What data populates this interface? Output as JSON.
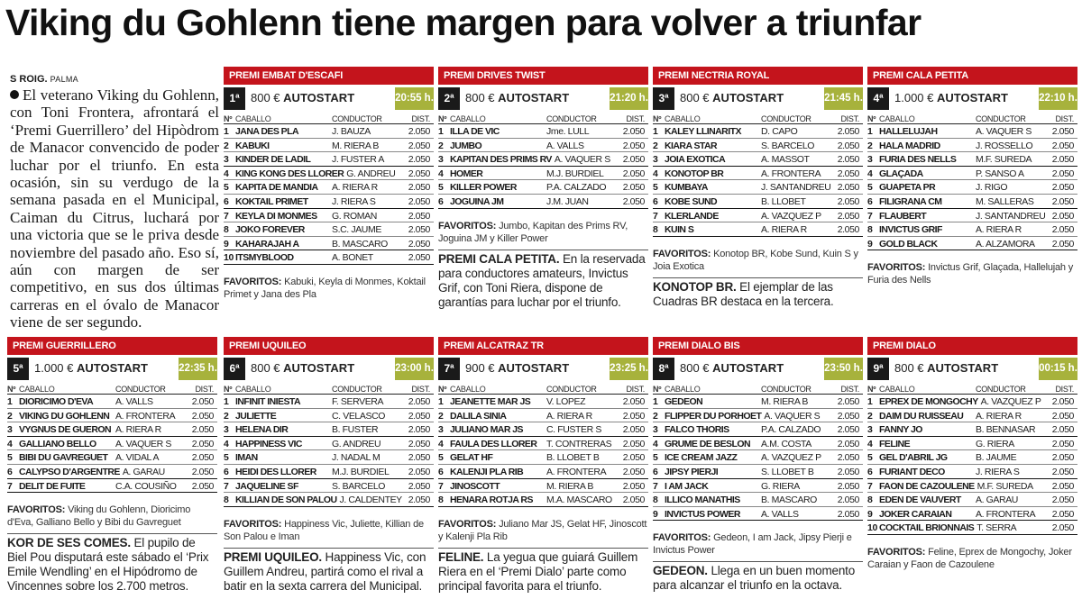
{
  "headline": "Viking du Gohlenn tiene margen para volver a triunfar",
  "byline": {
    "author": "S ROIG.",
    "city": "PALMA"
  },
  "lead": "El veterano Viking du Gohlenn, con Toni Frontera, afrontará el ‘Premi Guerrillero’ del Hipòdrom de Manacor convencido de poder luchar por el triunfo. En esta ocasión, sin su verdugo de la semana pasada en el Municipal, Caiman du Citrus, luchará por una victoria que se le priva desde noviembre del pasado año. Eso sí, aún con margen de ser competitivo, en sus dos últimas carreras en el óvalo de Manacor viene de ser segundo.",
  "labels": {
    "num": "Nº",
    "horse": "CABALLO",
    "driver": "CONDUCTOR",
    "dist": "DIST.",
    "favorites": "FAVORITOS:",
    "autostart": "AUTOSTART"
  },
  "colors": {
    "header_red": "#c4141c",
    "time_green": "#a7b23c",
    "badge_black": "#1a1a1a"
  },
  "races": [
    {
      "name": "PREMI EMBAT D'ESCAFI",
      "order": "1ª",
      "prize": "800 €",
      "time": "20:55 h.",
      "entries": [
        [
          "1",
          "JANA DES PLA",
          "J. BAUZA",
          "2.050"
        ],
        [
          "2",
          "KABUKI",
          "M. RIERA B",
          "2.050"
        ],
        [
          "3",
          "KINDER DE LADIL",
          "J. FUSTER A",
          "2.050"
        ],
        [
          "4",
          "KING KONG DES LLORER",
          "G. ANDREU",
          "2.050"
        ],
        [
          "5",
          "KAPITA DE MANDIA",
          "A. RIERA R",
          "2.050"
        ],
        [
          "6",
          "KOKTAIL PRIMET",
          "J. RIERA S",
          "2.050"
        ],
        [
          "7",
          "KEYLA DI MONMES",
          "G. ROMAN",
          "2.050"
        ],
        [
          "8",
          "JOKO FOREVER",
          "S.C. JAUME",
          "2.050"
        ],
        [
          "9",
          "KAHARAJAH A",
          "B. MASCARO",
          "2.050"
        ],
        [
          "10",
          "ITSMYBLOOD",
          "A. BONET",
          "2.050"
        ]
      ],
      "favorites": "Kabuki, Keyla di Monmes, Koktail Primet y Jana des Pla"
    },
    {
      "name": "PREMI DRIVES TWIST",
      "order": "2ª",
      "prize": "800 €",
      "time": "21:20 h.",
      "entries": [
        [
          "1",
          "ILLA DE VIC",
          "Jme. LULL",
          "2.050"
        ],
        [
          "2",
          "JUMBO",
          "A. VALLS",
          "2.050"
        ],
        [
          "3",
          "KAPITAN DES PRIMS RV",
          "A. VAQUER S",
          "2.050"
        ],
        [
          "4",
          "HOMER",
          "M.J. BURDIEL",
          "2.050"
        ],
        [
          "5",
          "KILLER POWER",
          "P.A. CALZADO",
          "2.050"
        ],
        [
          "6",
          "JOGUINA JM",
          "J.M. JUAN",
          "2.050"
        ]
      ],
      "favorites": "Jumbo, Kapitan des Prims RV, Joguina JM y Killer Power",
      "note_title": "PREMI CALA PETITA.",
      "note_text": "En la reservada para conductores amateurs, Invictus Grif, con Toni Riera, dispone de garantías para luchar por el triunfo."
    },
    {
      "name": "PREMI NECTRIA ROYAL",
      "order": "3ª",
      "prize": "800 €",
      "time": "21:45 h.",
      "entries": [
        [
          "1",
          "KALEY LLINARITX",
          "D. CAPO",
          "2.050"
        ],
        [
          "2",
          "KIARA STAR",
          "S. BARCELO",
          "2.050"
        ],
        [
          "3",
          "JOIA EXOTICA",
          "A. MASSOT",
          "2.050"
        ],
        [
          "4",
          "KONOTOP BR",
          "A. FRONTERA",
          "2.050"
        ],
        [
          "5",
          "KUMBAYA",
          "J. SANTANDREU",
          "2.050"
        ],
        [
          "6",
          "KOBE SUND",
          "B. LLOBET",
          "2.050"
        ],
        [
          "7",
          "KLERLANDE",
          "A. VAZQUEZ P",
          "2.050"
        ],
        [
          "8",
          "KUIN S",
          "A. RIERA R",
          "2.050"
        ]
      ],
      "favorites": "Konotop BR, Kobe Sund, Kuin S y Joia Exotica",
      "note_title": "KONOTOP BR.",
      "note_text": "El ejemplar de las Cuadras BR destaca en la tercera."
    },
    {
      "name": "PREMI CALA PETITA",
      "order": "4ª",
      "prize": "1.000 €",
      "time": "22:10 h.",
      "entries": [
        [
          "1",
          "HALLELUJAH",
          "A. VAQUER S",
          "2.050"
        ],
        [
          "2",
          "HALA MADRID",
          "J. ROSSELLO",
          "2.050"
        ],
        [
          "3",
          "FURIA DES NELLS",
          "M.F. SUREDA",
          "2.050"
        ],
        [
          "4",
          "GLAÇADA",
          "P. SANSO A",
          "2.050"
        ],
        [
          "5",
          "GUAPETA PR",
          "J. RIGO",
          "2.050"
        ],
        [
          "6",
          "FILIGRANA CM",
          "M. SALLERAS",
          "2.050"
        ],
        [
          "7",
          "FLAUBERT",
          "J. SANTANDREU",
          "2.050"
        ],
        [
          "8",
          "INVICTUS GRIF",
          "A. RIERA R",
          "2.050"
        ],
        [
          "9",
          "GOLD BLACK",
          "A. ALZAMORA",
          "2.050"
        ]
      ],
      "favorites": "Invictus Grif, Glaçada, Hallelujah y Furia des Nells"
    },
    {
      "name": "PREMI GUERRILLERO",
      "order": "5ª",
      "prize": "1.000 €",
      "time": "22:35 h.",
      "entries": [
        [
          "1",
          "DIORICIMO D'EVA",
          "A. VALLS",
          "2.050"
        ],
        [
          "2",
          "VIKING DU GOHLENN",
          "A. FRONTERA",
          "2.050"
        ],
        [
          "3",
          "VYGNUS DE GUERON",
          "A. RIERA R",
          "2.050"
        ],
        [
          "4",
          "GALLIANO BELLO",
          "A. VAQUER S",
          "2.050"
        ],
        [
          "5",
          "BIBI DU GAVREGUET",
          "A. VIDAL A",
          "2.050"
        ],
        [
          "6",
          "CALYPSO D'ARGENTRE",
          "A. GARAU",
          "2.050"
        ],
        [
          "7",
          "DELIT DE FUITE",
          "C.A. COUSIÑO",
          "2.050"
        ]
      ],
      "favorites": "Viking du Gohlenn, Dioricimo d'Eva, Galliano Bello y Bibi du Gavreguet",
      "note_title": "KOR DE SES COMES.",
      "note_text": "El pupilo de Biel Pou disputará este sábado el ‘Prix Emile Wendling’ en el Hipódromo de Vincennes sobre los 2.700 metros."
    },
    {
      "name": "PREMI UQUILEO",
      "order": "6ª",
      "prize": "800 €",
      "time": "23:00 h.",
      "entries": [
        [
          "1",
          "INFINIT INIESTA",
          "F. SERVERA",
          "2.050"
        ],
        [
          "2",
          "JULIETTE",
          "C. VELASCO",
          "2.050"
        ],
        [
          "3",
          "HELENA DIR",
          "B. FUSTER",
          "2.050"
        ],
        [
          "4",
          "HAPPINESS VIC",
          "G. ANDREU",
          "2.050"
        ],
        [
          "5",
          "IMAN",
          "J. NADAL M",
          "2.050"
        ],
        [
          "6",
          "HEIDI DES LLORER",
          "M.J. BURDIEL",
          "2.050"
        ],
        [
          "7",
          "JAQUELINE SF",
          "S. BARCELO",
          "2.050"
        ],
        [
          "8",
          "KILLIAN DE SON PALOU",
          "J. CALDENTEY",
          "2.050"
        ]
      ],
      "favorites": "Happiness Vic, Juliette, Killian de Son Palou e Iman",
      "note_title": "PREMI UQUILEO.",
      "note_text": "Happiness Vic, con Guillem Andreu, partirá como el rival a batir en la sexta carrera del Municipal."
    },
    {
      "name": "PREMI ALCATRAZ TR",
      "order": "7ª",
      "prize": "900 €",
      "time": "23:25 h.",
      "entries": [
        [
          "1",
          "JEANETTE MAR JS",
          "V. LOPEZ",
          "2.050"
        ],
        [
          "2",
          "DALILA SINIA",
          "A. RIERA R",
          "2.050"
        ],
        [
          "3",
          "JULIANO MAR JS",
          "C. FUSTER S",
          "2.050"
        ],
        [
          "4",
          "FAULA DES LLORER",
          "T. CONTRERAS",
          "2.050"
        ],
        [
          "5",
          "GELAT HF",
          "B. LLOBET B",
          "2.050"
        ],
        [
          "6",
          "KALENJI PLA RIB",
          "A. FRONTERA",
          "2.050"
        ],
        [
          "7",
          "JINOSCOTT",
          "M. RIERA B",
          "2.050"
        ],
        [
          "8",
          "HENARA ROTJA RS",
          "M.A. MASCARO",
          "2.050"
        ]
      ],
      "favorites": "Juliano Mar JS, Gelat HF, Jinoscott y Kalenji Pla Rib",
      "note_title": "FELINE.",
      "note_text": "La yegua que guiará Guillem Riera en el ‘Premi Dialo’ parte como principal favorita para el triunfo."
    },
    {
      "name": "PREMI DIALO BIS",
      "order": "8ª",
      "prize": "800 €",
      "time": "23:50 h.",
      "entries": [
        [
          "1",
          "GEDEON",
          "M. RIERA B",
          "2.050"
        ],
        [
          "2",
          "FLIPPER DU PORHOET",
          "A. VAQUER S",
          "2.050"
        ],
        [
          "3",
          "FALCO THORIS",
          "P.A. CALZADO",
          "2.050"
        ],
        [
          "4",
          "GRUME DE BESLON",
          "A.M. COSTA",
          "2.050"
        ],
        [
          "5",
          "ICE CREAM JAZZ",
          "A. VAZQUEZ P",
          "2.050"
        ],
        [
          "6",
          "JIPSY PIERJI",
          "S. LLOBET B",
          "2.050"
        ],
        [
          "7",
          "I AM JACK",
          "G. RIERA",
          "2.050"
        ],
        [
          "8",
          "ILLICO MANATHIS",
          "B. MASCARO",
          "2.050"
        ],
        [
          "9",
          "INVICTUS POWER",
          "A. VALLS",
          "2.050"
        ]
      ],
      "favorites": "Gedeon, I am Jack, Jipsy Pierji e Invictus Power",
      "note_title": "GEDEON.",
      "note_text": "Llega en un buen momento para alcanzar el triunfo en la octava."
    },
    {
      "name": "PREMI DIALO",
      "order": "9ª",
      "prize": "800 €",
      "time": "00:15 h.",
      "entries": [
        [
          "1",
          "EPREX DE MONGOCHY",
          "A. VAZQUEZ P",
          "2.050"
        ],
        [
          "2",
          "DAIM DU RUISSEAU",
          "A. RIERA R",
          "2.050"
        ],
        [
          "3",
          "FANNY JO",
          "B. BENNASAR",
          "2.050"
        ],
        [
          "4",
          "FELINE",
          "G. RIERA",
          "2.050"
        ],
        [
          "5",
          "GEL D'ABRIL JG",
          "B. JAUME",
          "2.050"
        ],
        [
          "6",
          "FURIANT DECO",
          "J. RIERA S",
          "2.050"
        ],
        [
          "7",
          "FAON DE CAZOULENE",
          "M.F. SUREDA",
          "2.050"
        ],
        [
          "8",
          "EDEN DE VAUVERT",
          "A. GARAU",
          "2.050"
        ],
        [
          "9",
          "JOKER CARAIAN",
          "A. FRONTERA",
          "2.050"
        ],
        [
          "10",
          "COCKTAIL BRIONNAIS",
          "T. SERRA",
          "2.050"
        ]
      ],
      "favorites": "Feline, Eprex de Mongochy, Joker Caraian y Faon de Cazoulene"
    }
  ]
}
